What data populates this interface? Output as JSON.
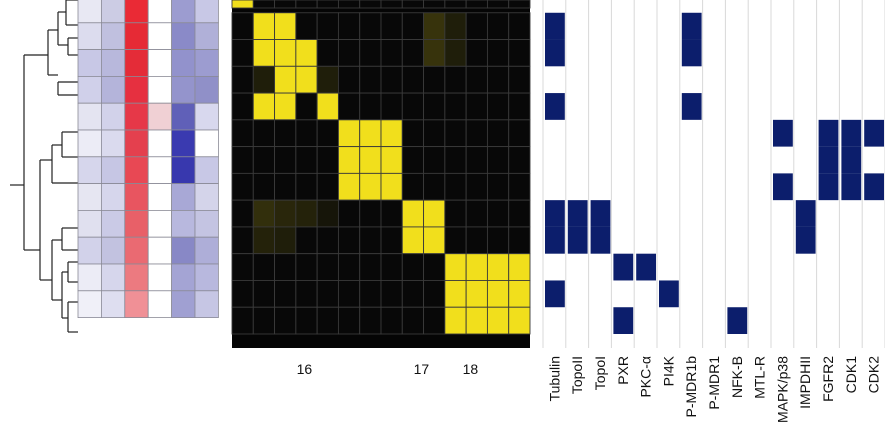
{
  "dendrogram": {
    "segments": [
      [
        10,
        185,
        24,
        185
      ],
      [
        24,
        55,
        24,
        250
      ],
      [
        24,
        55,
        48,
        55
      ],
      [
        48,
        30,
        48,
        75
      ],
      [
        48,
        30,
        58,
        30
      ],
      [
        58,
        12,
        58,
        45
      ],
      [
        58,
        12,
        66,
        12
      ],
      [
        58,
        45,
        68,
        45
      ],
      [
        66,
        0,
        66,
        25
      ],
      [
        66,
        0,
        78,
        0
      ],
      [
        66,
        25,
        78,
        25
      ],
      [
        68,
        38,
        68,
        55
      ],
      [
        68,
        38,
        78,
        38
      ],
      [
        68,
        55,
        78,
        55
      ],
      [
        48,
        75,
        58,
        75
      ],
      [
        58,
        82,
        58,
        95
      ],
      [
        58,
        82,
        78,
        82
      ],
      [
        58,
        95,
        78,
        95
      ],
      [
        24,
        250,
        40,
        250
      ],
      [
        40,
        160,
        40,
        280
      ],
      [
        40,
        160,
        52,
        160
      ],
      [
        52,
        145,
        52,
        183
      ],
      [
        52,
        145,
        62,
        145
      ],
      [
        62,
        132,
        62,
        157
      ],
      [
        62,
        132,
        78,
        132
      ],
      [
        62,
        157,
        78,
        157
      ],
      [
        52,
        183,
        78,
        183
      ],
      [
        40,
        280,
        52,
        280
      ],
      [
        52,
        240,
        52,
        300
      ],
      [
        52,
        240,
        62,
        240
      ],
      [
        62,
        228,
        62,
        250
      ],
      [
        62,
        228,
        78,
        228
      ],
      [
        62,
        250,
        78,
        250
      ],
      [
        52,
        300,
        62,
        300
      ],
      [
        62,
        272,
        62,
        318
      ],
      [
        62,
        272,
        68,
        272
      ],
      [
        68,
        262,
        68,
        282
      ],
      [
        68,
        262,
        78,
        262
      ],
      [
        68,
        282,
        78,
        282
      ],
      [
        62,
        318,
        68,
        318
      ],
      [
        68,
        302,
        68,
        332
      ],
      [
        68,
        302,
        78,
        302
      ],
      [
        68,
        332,
        78,
        332
      ]
    ]
  },
  "left_heatmap": {
    "rows": [
      [
        "#e8e8f3",
        "#ccccE4",
        "#ea2a35",
        "#ffffff",
        "#9c9cd0",
        "#c8c8e6"
      ],
      [
        "#dcdcee",
        "#c0c0df",
        "#e62a35",
        "#ffffff",
        "#8a8ac8",
        "#b0b0d8"
      ],
      [
        "#c8c8e6",
        "#b8b8dc",
        "#e42c38",
        "#ffffff",
        "#9292cc",
        "#9c9cd0"
      ],
      [
        "#d0d0ea",
        "#b4b4da",
        "#e63040",
        "#ffffff",
        "#9494cc",
        "#9090c8"
      ],
      [
        "#e4e4f1",
        "#d2d2ea",
        "#e63848",
        "#f0d0d4",
        "#6060b8",
        "#d8d8ee"
      ],
      [
        "#ececf6",
        "#dadaee",
        "#e4404e",
        "#ffffff",
        "#3a3ab0",
        "#ffffff"
      ],
      [
        "#d6d6ec",
        "#c6c6e4",
        "#e84854",
        "#ffffff",
        "#3838ae",
        "#c8c8e6"
      ],
      [
        "#e6e6f2",
        "#d6d6ec",
        "#e85560",
        "#ffffff",
        "#a8a8d6",
        "#d4d4ea"
      ],
      [
        "#e0e0ef",
        "#cacae6",
        "#e86068",
        "#ffffff",
        "#b8b8de",
        "#c4c4e2"
      ],
      [
        "#d2d2ea",
        "#c2c2e0",
        "#ea6a72",
        "#ffffff",
        "#8888c6",
        "#aeaed8"
      ],
      [
        "#ececf6",
        "#d6d6ec",
        "#ec7a80",
        "#ffffff",
        "#a4a4d4",
        "#b8b8de"
      ],
      [
        "#f0f0f8",
        "#dedef0",
        "#f09096",
        "#ffffff",
        "#a0a0d2",
        "#c6c6e4"
      ]
    ]
  },
  "similarity_matrix": {
    "yellow": "#f1df1c",
    "black": "#050505",
    "cells": [
      [
        1,
        0,
        0,
        0,
        0,
        0,
        0,
        0,
        0,
        0,
        0,
        0,
        0,
        0
      ],
      [
        0,
        1,
        1,
        0,
        0,
        0,
        0,
        0,
        0,
        0.2,
        0.1,
        0,
        0,
        0
      ],
      [
        0,
        1,
        1,
        1,
        0,
        0,
        0,
        0,
        0,
        0.2,
        0.1,
        0,
        0,
        0
      ],
      [
        0,
        0.1,
        1,
        1,
        0.1,
        0,
        0,
        0,
        0,
        0,
        0,
        0,
        0,
        0
      ],
      [
        0,
        1,
        1,
        0,
        1,
        0,
        0,
        0,
        0,
        0,
        0,
        0,
        0,
        0
      ],
      [
        0,
        0,
        0,
        0,
        0,
        1,
        1,
        1,
        0,
        0,
        0,
        0,
        0,
        0
      ],
      [
        0,
        0,
        0,
        0,
        0,
        1,
        1,
        1,
        0,
        0,
        0,
        0,
        0,
        0
      ],
      [
        0,
        0,
        0,
        0,
        0,
        1,
        1,
        1,
        0,
        0,
        0,
        0,
        0,
        0
      ],
      [
        0,
        0.18,
        0.14,
        0.12,
        0.06,
        0,
        0,
        0,
        1,
        1,
        0,
        0,
        0,
        0
      ],
      [
        0,
        0.12,
        0.1,
        0,
        0,
        0,
        0,
        0,
        1,
        1,
        0,
        0,
        0,
        0
      ],
      [
        0,
        0,
        0,
        0,
        0,
        0,
        0,
        0,
        0,
        0,
        1,
        1,
        1,
        1
      ],
      [
        0,
        0,
        0,
        0,
        0,
        0,
        0,
        0,
        0,
        0,
        1,
        1,
        1,
        1
      ],
      [
        0,
        0,
        0,
        0,
        0,
        0,
        0,
        0,
        0,
        0,
        1,
        1,
        1,
        1
      ]
    ],
    "cluster_labels": [
      {
        "text": "16",
        "col": 3.4
      },
      {
        "text": "17",
        "col": 8.9
      },
      {
        "text": "18",
        "col": 11.2
      }
    ]
  },
  "target_matrix": {
    "fill": "#0c1e6c",
    "columns": [
      "Tubulin",
      "TopoII",
      "TopoI",
      "PXR",
      "PKC-α",
      "PI4K",
      "P-MDR1b",
      "P-MDR1",
      "NFK-B",
      "MTL-R",
      "MAPK/p38",
      "IMPDHII",
      "FGFR2",
      "CDK1",
      "CDK2"
    ],
    "rows": [
      [
        0,
        0,
        0,
        0,
        0,
        0,
        0,
        0,
        0,
        0,
        0,
        0,
        0,
        0,
        0
      ],
      [
        1,
        0,
        0,
        0,
        0,
        0,
        1,
        0,
        0,
        0,
        0,
        0,
        0,
        0,
        0
      ],
      [
        1,
        0,
        0,
        0,
        0,
        0,
        1,
        0,
        0,
        0,
        0,
        0,
        0,
        0,
        0
      ],
      [
        0,
        0,
        0,
        0,
        0,
        0,
        0,
        0,
        0,
        0,
        0,
        0,
        0,
        0,
        0
      ],
      [
        1,
        0,
        0,
        0,
        0,
        0,
        1,
        0,
        0,
        0,
        0,
        0,
        0,
        0,
        0
      ],
      [
        0,
        0,
        0,
        0,
        0,
        0,
        0,
        0,
        0,
        0,
        1,
        0,
        1,
        1,
        1
      ],
      [
        0,
        0,
        0,
        0,
        0,
        0,
        0,
        0,
        0,
        0,
        0,
        0,
        1,
        1,
        0
      ],
      [
        0,
        0,
        0,
        0,
        0,
        0,
        0,
        0,
        0,
        0,
        1,
        0,
        1,
        1,
        1
      ],
      [
        1,
        1,
        1,
        0,
        0,
        0,
        0,
        0,
        0,
        0,
        0,
        1,
        0,
        0,
        0
      ],
      [
        1,
        1,
        1,
        0,
        0,
        0,
        0,
        0,
        0,
        0,
        0,
        1,
        0,
        0,
        0
      ],
      [
        0,
        0,
        0,
        1,
        1,
        0,
        0,
        0,
        0,
        0,
        0,
        0,
        0,
        0,
        0
      ],
      [
        1,
        0,
        0,
        0,
        0,
        1,
        0,
        0,
        0,
        0,
        0,
        0,
        0,
        0,
        0
      ],
      [
        0,
        0,
        0,
        1,
        0,
        0,
        0,
        0,
        1,
        0,
        0,
        0,
        0,
        0,
        0
      ]
    ]
  }
}
